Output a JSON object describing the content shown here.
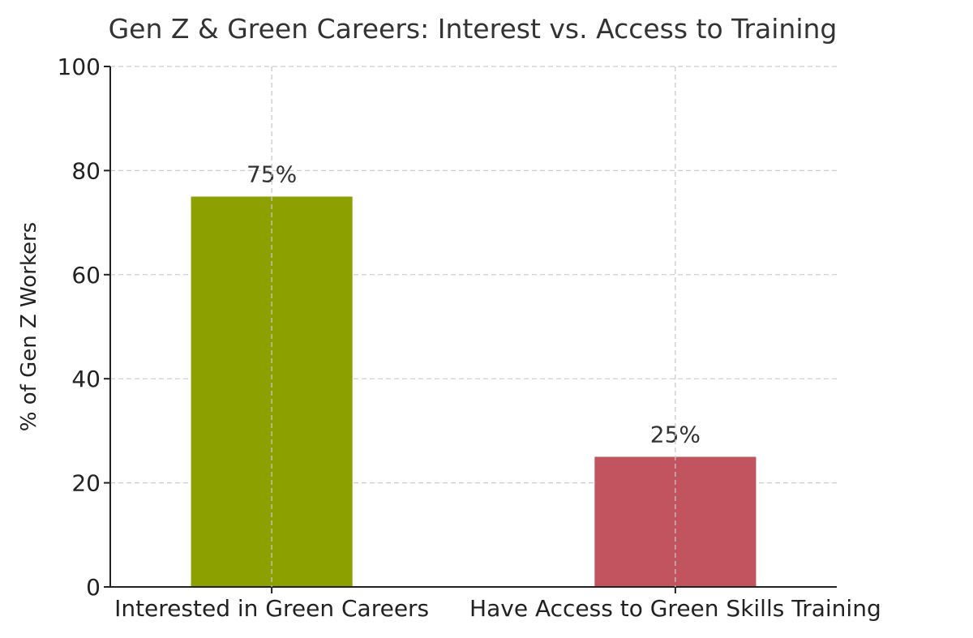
{
  "chart_data": {
    "type": "bar",
    "title": "Gen Z & Green Careers: Interest vs. Access to Training",
    "xlabel": "",
    "ylabel": "% of Gen Z Workers",
    "categories": [
      "Interested in Green Careers",
      "Have Access to Green Skills Training"
    ],
    "values": [
      75,
      25
    ],
    "data_labels": [
      "75%",
      "25%"
    ],
    "colors": [
      "#8ca000",
      "#c1545e"
    ],
    "ylim": [
      0,
      100
    ],
    "yticks": [
      0,
      20,
      40,
      60,
      80,
      100
    ],
    "ytick_labels": [
      "0",
      "20",
      "40",
      "60",
      "80",
      "100"
    ],
    "grid": true,
    "legend": "none"
  }
}
